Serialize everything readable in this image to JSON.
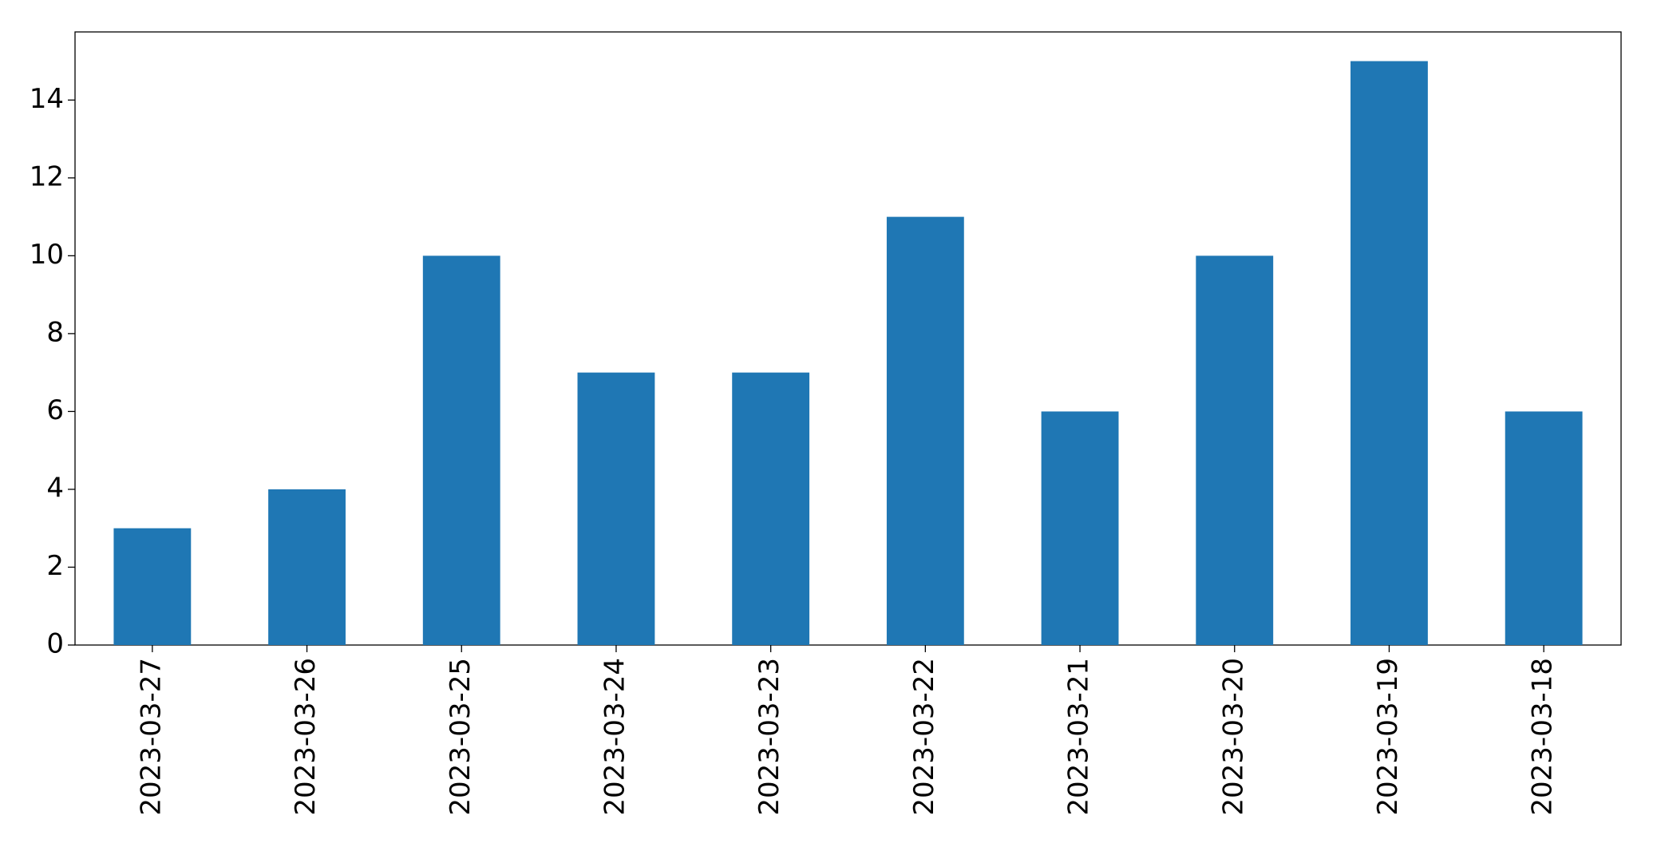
{
  "chart_data": {
    "type": "bar",
    "categories": [
      "2023-03-27",
      "2023-03-26",
      "2023-03-25",
      "2023-03-24",
      "2023-03-23",
      "2023-03-22",
      "2023-03-21",
      "2023-03-20",
      "2023-03-19",
      "2023-03-18"
    ],
    "values": [
      3,
      4,
      10,
      7,
      7,
      11,
      6,
      10,
      15,
      6
    ],
    "color": "#1f77b4",
    "ylim": [
      0,
      15.75
    ],
    "yticks": [
      0,
      2,
      4,
      6,
      8,
      10,
      12,
      14
    ],
    "grid": false
  }
}
